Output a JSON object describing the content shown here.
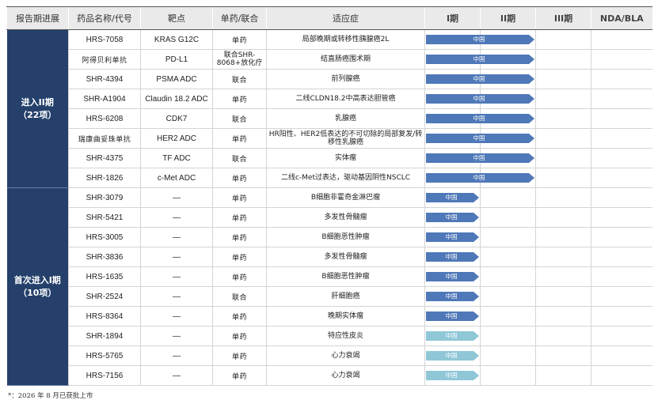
{
  "headers": {
    "stage": "报告期进展",
    "drug": "药品名称/代号",
    "target": "靶点",
    "combo": "单药/联合",
    "indication": "适应症",
    "p1": "I期",
    "p2": "II期",
    "p3": "III期",
    "nda": "NDA/BLA"
  },
  "groups": [
    {
      "label_line1": "进入II期",
      "label_line2": "（22项）",
      "rows": [
        {
          "drug": "HRS-7058",
          "target": "KRAS G12C",
          "combo": "单药",
          "indication": "局部晚期或转移性胰腺癌2L",
          "region": "中国",
          "reach": 2
        },
        {
          "drug": "阿得贝利单抗",
          "target": "PD-L1",
          "combo": "联合SHR-8068+放化疗",
          "indication": "结直肠癌围术期",
          "region": "中国",
          "reach": 2
        },
        {
          "drug": "SHR-4394",
          "target": "PSMA ADC",
          "combo": "联合",
          "indication": "前列腺癌",
          "region": "中国",
          "reach": 2
        },
        {
          "drug": "SHR-A1904",
          "target": "Claudin 18.2 ADC",
          "combo": "单药",
          "indication": "二线CLDN18.2中高表达胆管癌",
          "region": "中国",
          "reach": 2
        },
        {
          "drug": "HRS-6208",
          "target": "CDK7",
          "combo": "联合",
          "indication": "乳腺癌",
          "region": "中国",
          "reach": 2
        },
        {
          "drug": "瑞康曲妥珠单抗",
          "target": "HER2 ADC",
          "combo": "单药",
          "indication": "HR阳性、HER2低表达的不可切除的局部复发/转移性乳腺癌",
          "region": "中国",
          "reach": 2
        },
        {
          "drug": "SHR-4375",
          "target": "TF ADC",
          "combo": "联合",
          "indication": "实体瘤",
          "region": "中国",
          "reach": 2
        },
        {
          "drug": "SHR-1826",
          "target": "c-Met ADC",
          "combo": "单药",
          "indication": "二线c-Met过表达，驱动基因阴性NSCLC",
          "region": "中国",
          "reach": 2
        }
      ]
    },
    {
      "label_line1": "首次进入I期",
      "label_line2": "（10项）",
      "rows": [
        {
          "drug": "SHR-3079",
          "target": "—",
          "combo": "单药",
          "indication": "B细胞非霍奇金淋巴瘤",
          "region": "中国",
          "reach": 1,
          "tone": "dark"
        },
        {
          "drug": "SHR-5421",
          "target": "—",
          "combo": "单药",
          "indication": "多发性骨髓瘤",
          "region": "中国",
          "reach": 1,
          "tone": "dark"
        },
        {
          "drug": "HRS-3005",
          "target": "—",
          "combo": "单药",
          "indication": "B细胞恶性肿瘤",
          "region": "中国",
          "reach": 1,
          "tone": "dark"
        },
        {
          "drug": "SHR-3836",
          "target": "—",
          "combo": "单药",
          "indication": "多发性骨髓瘤",
          "region": "中国",
          "reach": 1,
          "tone": "dark"
        },
        {
          "drug": "HRS-1635",
          "target": "—",
          "combo": "单药",
          "indication": "B细胞恶性肿瘤",
          "region": "中国",
          "reach": 1,
          "tone": "dark"
        },
        {
          "drug": "SHR-2524",
          "target": "—",
          "combo": "联合",
          "indication": "肝细胞癌",
          "region": "中国",
          "reach": 1,
          "tone": "dark"
        },
        {
          "drug": "HRS-8364",
          "target": "—",
          "combo": "单药",
          "indication": "晚期实体瘤",
          "region": "中国",
          "reach": 1,
          "tone": "dark"
        },
        {
          "drug": "SHR-1894",
          "target": "—",
          "combo": "单药",
          "indication": "特应性皮炎",
          "region": "中国",
          "reach": 1,
          "tone": "light"
        },
        {
          "drug": "HRS-5765",
          "target": "—",
          "combo": "单药",
          "indication": "心力衰竭",
          "region": "中国",
          "reach": 1,
          "tone": "light"
        },
        {
          "drug": "HRS-7156",
          "target": "—",
          "combo": "单药",
          "indication": "心力衰竭",
          "region": "中国",
          "reach": 1,
          "tone": "light"
        }
      ]
    }
  ],
  "footnote": "*：2026 年 8 月已获批上市"
}
